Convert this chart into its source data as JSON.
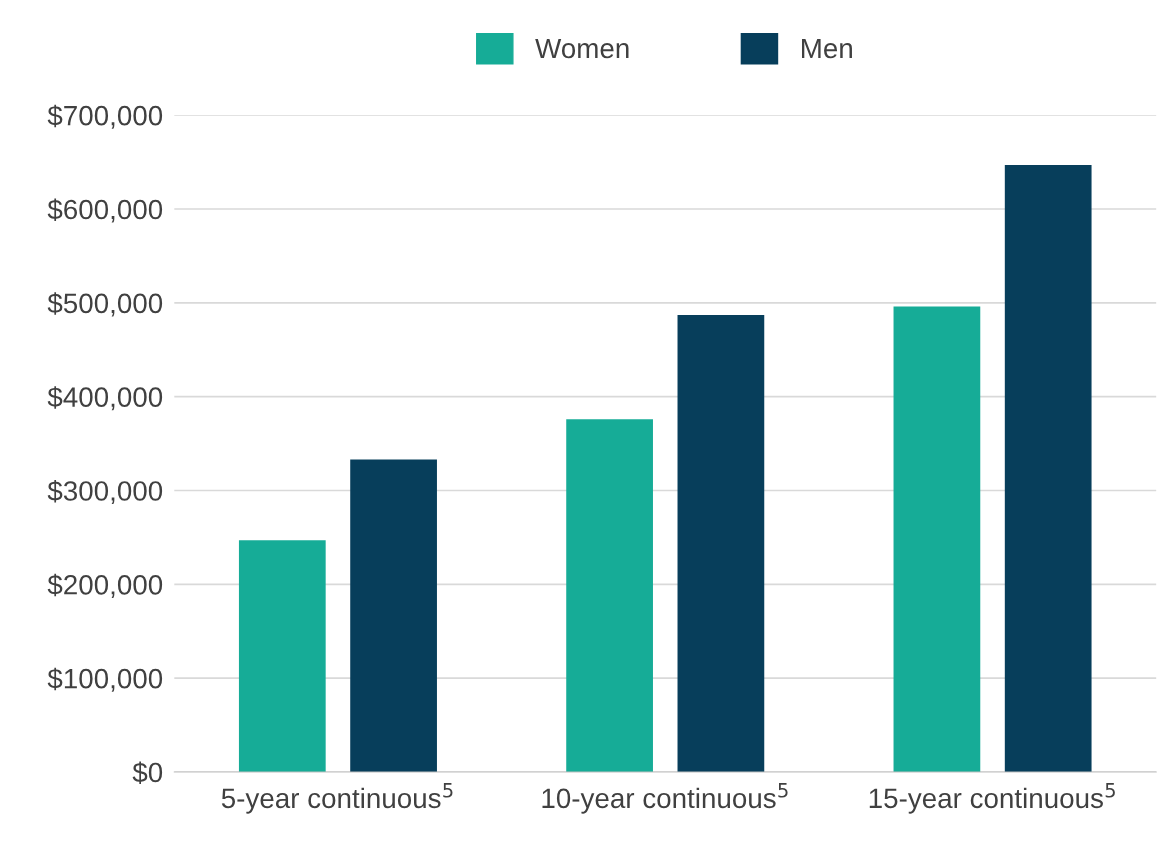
{
  "chart_data": {
    "type": "bar",
    "categories": [
      "5-year continuous$^{5}$",
      "10-year continuous$^{5}$",
      "15-year continuous$^{5}$"
    ],
    "series": [
      {
        "name": "Women",
        "color": "#16ac97",
        "values": [
          247000,
          376000,
          496000
        ]
      },
      {
        "name": "Men",
        "color": "#073e5b",
        "values": [
          333000,
          487000,
          647000
        ]
      }
    ],
    "ylim": [
      0,
      700000
    ],
    "yticks": [
      {
        "value": 0,
        "label": "$0"
      },
      {
        "value": 100000,
        "label": "$100,000"
      },
      {
        "value": 200000,
        "label": "$200,000"
      },
      {
        "value": 300000,
        "label": "$300,000"
      },
      {
        "value": 400000,
        "label": "$400,000"
      },
      {
        "value": 500000,
        "label": "$500,000"
      },
      {
        "value": 600000,
        "label": "$600,000"
      },
      {
        "value": 700000,
        "label": "$700,000"
      }
    ],
    "grid": "y",
    "legend": "top"
  }
}
